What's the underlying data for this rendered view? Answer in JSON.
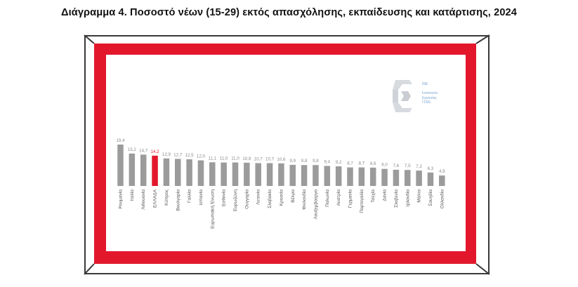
{
  "chart_data": {
    "type": "bar",
    "title": "Διάγραμμα 4. Ποσοστό νέων (15-29) εκτός απασχόλησης, εκπαίδευσης και κατάρτισης, 2024",
    "categories": [
      "Ρουμανία",
      "Ιταλία",
      "Λιθουανία",
      "ΕΛΛΑΔΑ",
      "Κύπρος",
      "Βουλγαρία",
      "Γαλλία",
      "Ισπανία",
      "Ευρωπαϊκή Ένωση",
      "Εσθονία",
      "Ευρωζώνη",
      "Ουγγαρία",
      "Λετονία",
      "Σλοβακία",
      "Κροατία",
      "Βέλγιο",
      "Φινλανδία",
      "Λουξεμβούργο",
      "Πολωνία",
      "Αυστρία",
      "Γερμανία",
      "Πορτογαλία",
      "Τσεχία",
      "Δανία",
      "Σλοβενία",
      "Ιρλανδία",
      "Μάλτα",
      "Σουηδία",
      "Ολλανδία"
    ],
    "values": [
      19.4,
      15.2,
      14.7,
      14.2,
      12.9,
      12.7,
      12.5,
      12.0,
      11.1,
      11.0,
      11.0,
      10.9,
      10.7,
      10.7,
      10.6,
      9.9,
      9.8,
      9.8,
      9.4,
      9.2,
      8.7,
      8.7,
      8.6,
      8.0,
      7.6,
      7.5,
      7.2,
      6.3,
      4.9
    ],
    "value_labels": [
      "19,4",
      "15,2",
      "14,7",
      "14,2",
      "12,9",
      "12,7",
      "12,5",
      "12,0",
      "11,1",
      "11,0",
      "11,0",
      "10,9",
      "10,7",
      "10,7",
      "10,6",
      "9,9",
      "9,8",
      "9,8",
      "9,4",
      "9,2",
      "8,7",
      "8,7",
      "8,6",
      "8,0",
      "7,6",
      "7,5",
      "7,2",
      "6,3",
      "4,9"
    ],
    "highlight": "ΕΛΛΑΔΑ",
    "colors": {
      "bar": "#9b9b9b",
      "highlight": "#e3172c",
      "label": "#8a8a8a",
      "highlight_label": "#e3172c",
      "frame": "#e3172c"
    },
    "grid": false,
    "legend": "none"
  },
  "logo": {
    "text": "ΙΝΕ\n \nΙνστιτούτο\nΕργασίας\nΓΣΕΕ"
  }
}
